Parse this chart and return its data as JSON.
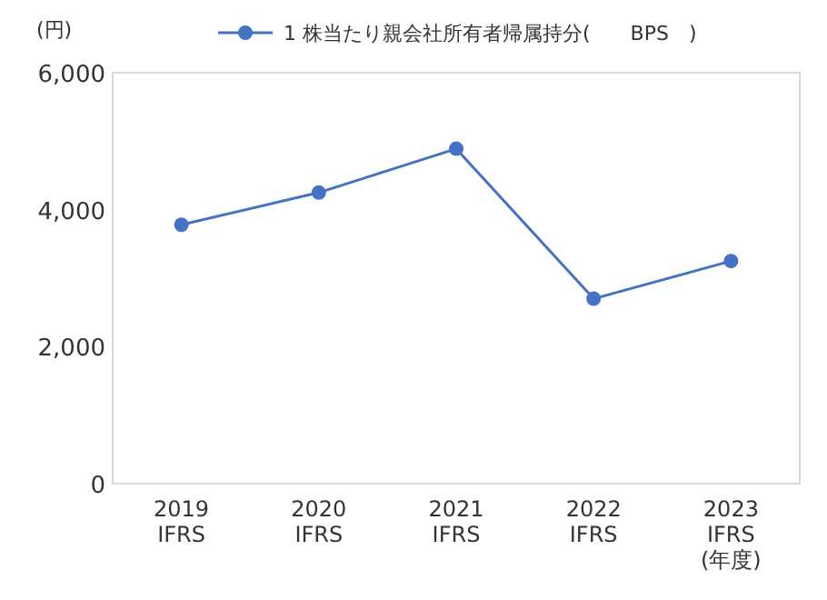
{
  "chart_data": {
    "type": "line",
    "ylabel": "(円)",
    "xlabel": "(年度)",
    "categories": [
      "2019\nIFRS",
      "2020\nIFRS",
      "2021\nIFRS",
      "2022\nIFRS",
      "2023\nIFRS"
    ],
    "series": [
      {
        "name": "1 株当たり親会社所有者帰属持分(　　BPS　)",
        "color": "#4472c4",
        "values": [
          3780,
          4250,
          4890,
          2700,
          3250
        ]
      }
    ],
    "ylim": [
      0,
      6000
    ],
    "yticks": [
      {
        "value": 0,
        "label": "0"
      },
      {
        "value": 2000,
        "label": "2,000"
      },
      {
        "value": 4000,
        "label": "4,000"
      },
      {
        "value": 6000,
        "label": "6,000"
      }
    ],
    "legend": "top",
    "marker": "circle"
  }
}
